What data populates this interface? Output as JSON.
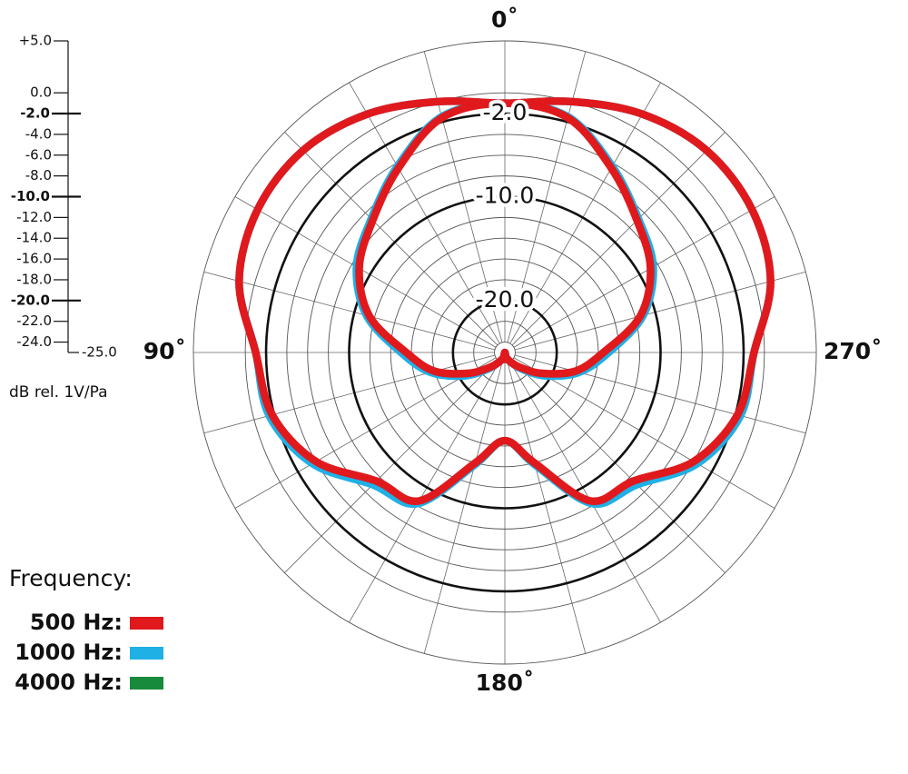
{
  "chart_data": {
    "type": "polar",
    "rlim": [
      -25,
      5
    ],
    "yticks": [
      {
        "value": 5,
        "label": "+5.0"
      },
      {
        "value": 0,
        "label": "0.0"
      },
      {
        "value": -2,
        "label": "-2.0"
      },
      {
        "value": -4,
        "label": "-4.0"
      },
      {
        "value": -6,
        "label": "-6.0"
      },
      {
        "value": -8,
        "label": "-8.0"
      },
      {
        "value": -10,
        "label": "-10.0"
      },
      {
        "value": -12,
        "label": "-12.0"
      },
      {
        "value": -14,
        "label": "-14.0"
      },
      {
        "value": -16,
        "label": "-16.0"
      },
      {
        "value": -18,
        "label": "-18.0"
      },
      {
        "value": -20,
        "label": "-20.0"
      },
      {
        "value": -22,
        "label": "-22.0"
      },
      {
        "value": -24,
        "label": "-24.0"
      },
      {
        "value": -25,
        "label": "-25.0"
      }
    ],
    "major_ticks": [
      -2,
      -10,
      -20
    ],
    "r_label": "dB rel. 1V/Pa",
    "angle_ticks": [
      {
        "value": 0,
        "label": "0˚"
      },
      {
        "value": 90,
        "label": "90˚"
      },
      {
        "value": 180,
        "label": "180˚"
      },
      {
        "value": 270,
        "label": "270˚"
      }
    ],
    "angles": [
      0,
      15,
      30,
      45,
      60,
      75,
      90,
      105,
      120,
      135,
      150,
      165,
      180,
      195,
      210,
      225,
      240,
      255,
      270,
      285,
      300,
      315,
      330,
      345
    ],
    "legend_title": "Frequency:",
    "series": [
      {
        "name": "500 Hz:",
        "color": "#e0191d",
        "patterns": [
          [
            -1,
            0,
            1.5,
            2.5,
            2.5,
            1.5,
            -1,
            -1.8,
            -4,
            -7.5,
            -8.5,
            -14,
            -16.5,
            -14,
            -8.5,
            -7.5,
            -4,
            -1.8,
            -1,
            1.5,
            2.5,
            2.5,
            1.5,
            0
          ],
          [
            -1,
            -1.6,
            -4.5,
            -7,
            -8.8,
            -11.5,
            -15.5,
            -18,
            -21,
            -23,
            -24,
            -24.5,
            -25,
            -24.5,
            -24,
            -23,
            -21,
            -18,
            -15.5,
            -11.5,
            -8.8,
            -7,
            -4.5,
            -1.6
          ]
        ]
      },
      {
        "name": "1000 Hz:",
        "color": "#1fb0e6",
        "patterns": [
          [
            -1,
            0,
            1.5,
            2.5,
            2.5,
            1.5,
            -1,
            -1.5,
            -3.6,
            -7,
            -8.2,
            -13.8,
            -16.5,
            -13.8,
            -8.2,
            -7,
            -3.6,
            -1.5,
            -1,
            1.5,
            2.5,
            2.5,
            1.5,
            0
          ],
          [
            -1,
            -1.5,
            -4.3,
            -6.8,
            -8.5,
            -11.2,
            -15,
            -17.6,
            -20.5,
            -22.8,
            -24,
            -24.5,
            -25,
            -24.5,
            -24,
            -22.8,
            -20.5,
            -17.6,
            -15,
            -11.2,
            -8.5,
            -6.8,
            -4.3,
            -1.5
          ]
        ]
      },
      {
        "name": "4000 Hz:",
        "color": "#178a3c",
        "patterns": []
      }
    ]
  }
}
